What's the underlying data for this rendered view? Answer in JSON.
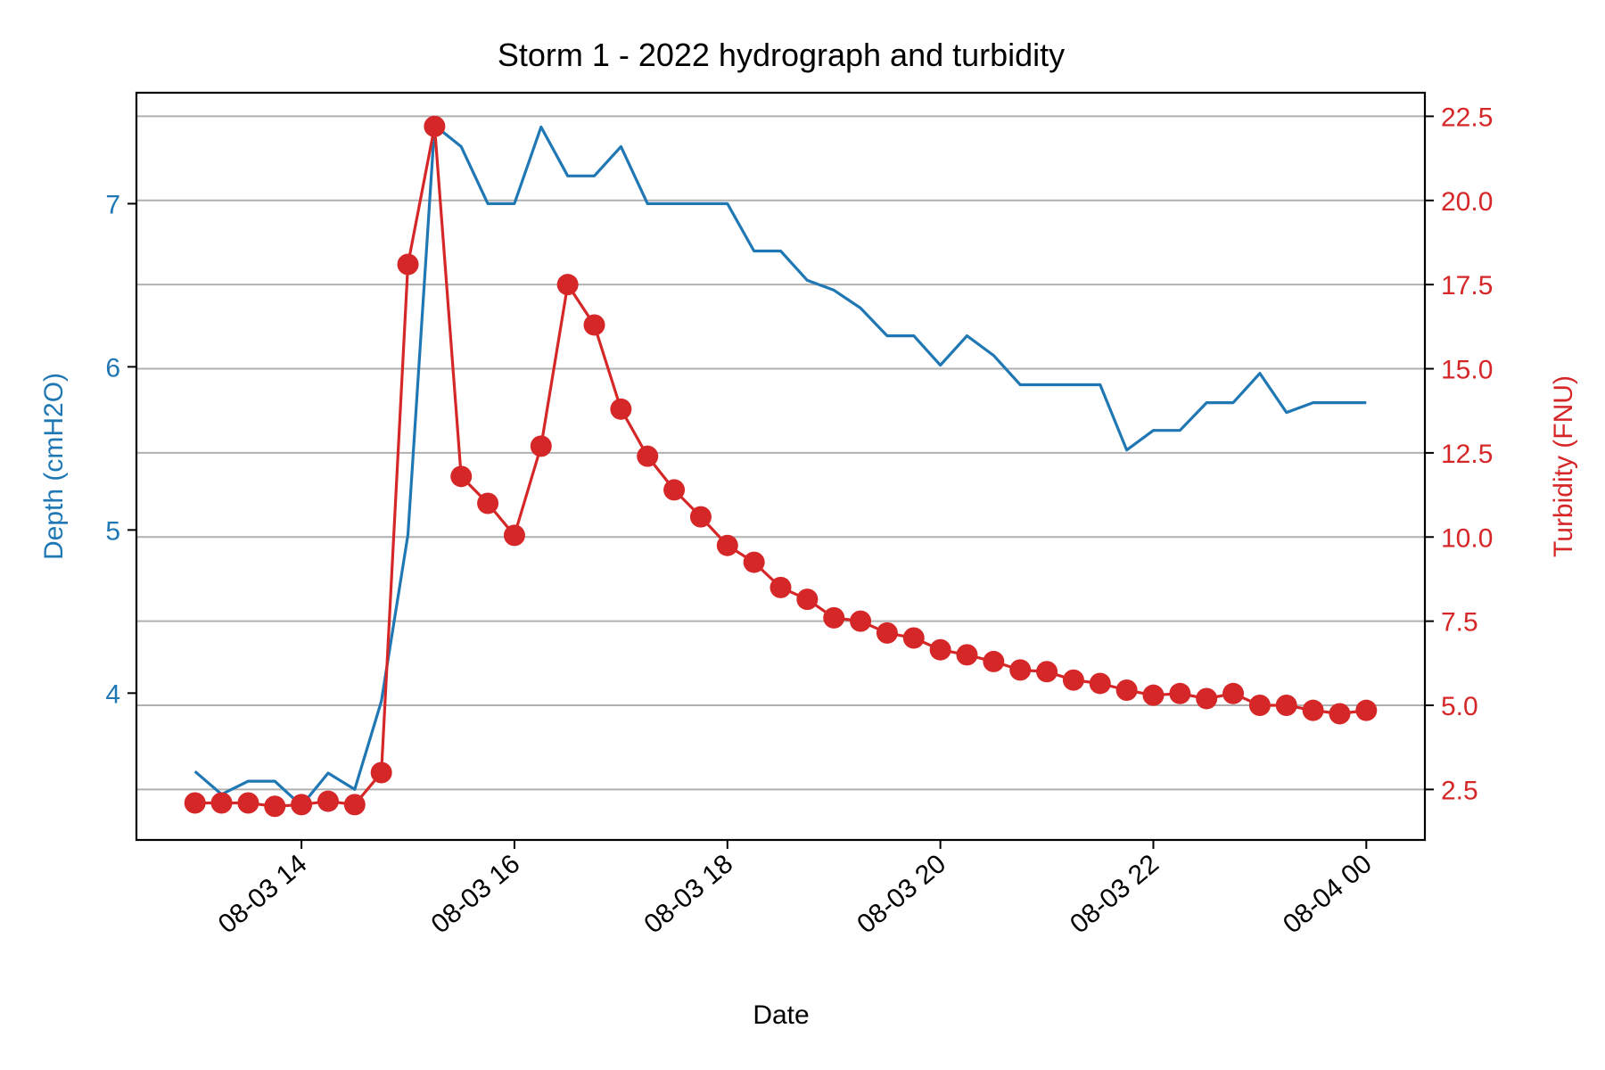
{
  "chart_data": {
    "type": "line",
    "title": "Storm 1 - 2022 hydrograph and turbidity",
    "xlabel": "Date",
    "x_tick_labels": [
      "08-03 14",
      "08-03 16",
      "08-03 18",
      "08-03 20",
      "08-03 22",
      "08-04 00"
    ],
    "x_ticks_hours": [
      14,
      16,
      18,
      20,
      22,
      24
    ],
    "x_range_hours": [
      12.45,
      24.55
    ],
    "grid": "horizontal",
    "series": [
      {
        "name": "Depth (cmH2O)",
        "axis": "left",
        "color": "#1f77b4",
        "ylim": [
          3.1,
          7.68
        ],
        "yticks": [
          4,
          5,
          6,
          7
        ],
        "x_hours": [
          13.0,
          13.25,
          13.5,
          13.75,
          14.0,
          14.25,
          14.5,
          14.75,
          15.0,
          15.25,
          15.5,
          15.75,
          16.0,
          16.25,
          16.5,
          16.75,
          17.0,
          17.25,
          17.5,
          17.75,
          18.0,
          18.25,
          18.5,
          18.75,
          19.0,
          19.25,
          19.5,
          19.75,
          20.0,
          20.25,
          20.5,
          20.75,
          21.0,
          21.25,
          21.5,
          21.75,
          22.0,
          22.25,
          22.5,
          22.75,
          23.0,
          23.25,
          23.5,
          23.75,
          24.0
        ],
        "values": [
          3.52,
          3.38,
          3.46,
          3.46,
          3.31,
          3.51,
          3.41,
          3.95,
          4.97,
          7.48,
          7.35,
          7.0,
          7.0,
          7.47,
          7.17,
          7.17,
          7.35,
          7.0,
          7.0,
          7.0,
          7.0,
          6.71,
          6.71,
          6.53,
          6.47,
          6.36,
          6.19,
          6.19,
          6.01,
          6.19,
          6.07,
          5.89,
          5.89,
          5.89,
          5.89,
          5.49,
          5.61,
          5.61,
          5.78,
          5.78,
          5.96,
          5.72,
          5.78,
          5.78,
          5.78
        ]
      },
      {
        "name": "Turbidity (FNU)",
        "axis": "right",
        "color": "#d62728",
        "ylim": [
          1.0,
          23.2
        ],
        "yticks": [
          2.5,
          5.0,
          7.5,
          10.0,
          12.5,
          15.0,
          17.5,
          20.0,
          22.5
        ],
        "x_hours": [
          13.0,
          13.25,
          13.5,
          13.75,
          14.0,
          14.25,
          14.5,
          14.75,
          15.0,
          15.25,
          15.5,
          15.75,
          16.0,
          16.25,
          16.5,
          16.75,
          17.0,
          17.25,
          17.5,
          17.75,
          18.0,
          18.25,
          18.5,
          18.75,
          19.0,
          19.25,
          19.5,
          19.75,
          20.0,
          20.25,
          20.5,
          20.75,
          21.0,
          21.25,
          21.5,
          21.75,
          22.0,
          22.25,
          22.5,
          22.75,
          23.0,
          23.25,
          23.5,
          23.75,
          24.0
        ],
        "values": [
          2.1,
          2.1,
          2.1,
          2.0,
          2.05,
          2.15,
          2.05,
          3.0,
          18.1,
          22.2,
          11.8,
          11.0,
          10.05,
          12.7,
          17.5,
          16.3,
          13.8,
          12.4,
          11.4,
          10.6,
          9.75,
          9.25,
          8.5,
          8.15,
          7.6,
          7.5,
          7.15,
          7.0,
          6.65,
          6.5,
          6.3,
          6.05,
          6.0,
          5.75,
          5.65,
          5.45,
          5.3,
          5.35,
          5.2,
          5.35,
          5.0,
          5.0,
          4.85,
          4.75,
          4.85
        ]
      }
    ]
  }
}
